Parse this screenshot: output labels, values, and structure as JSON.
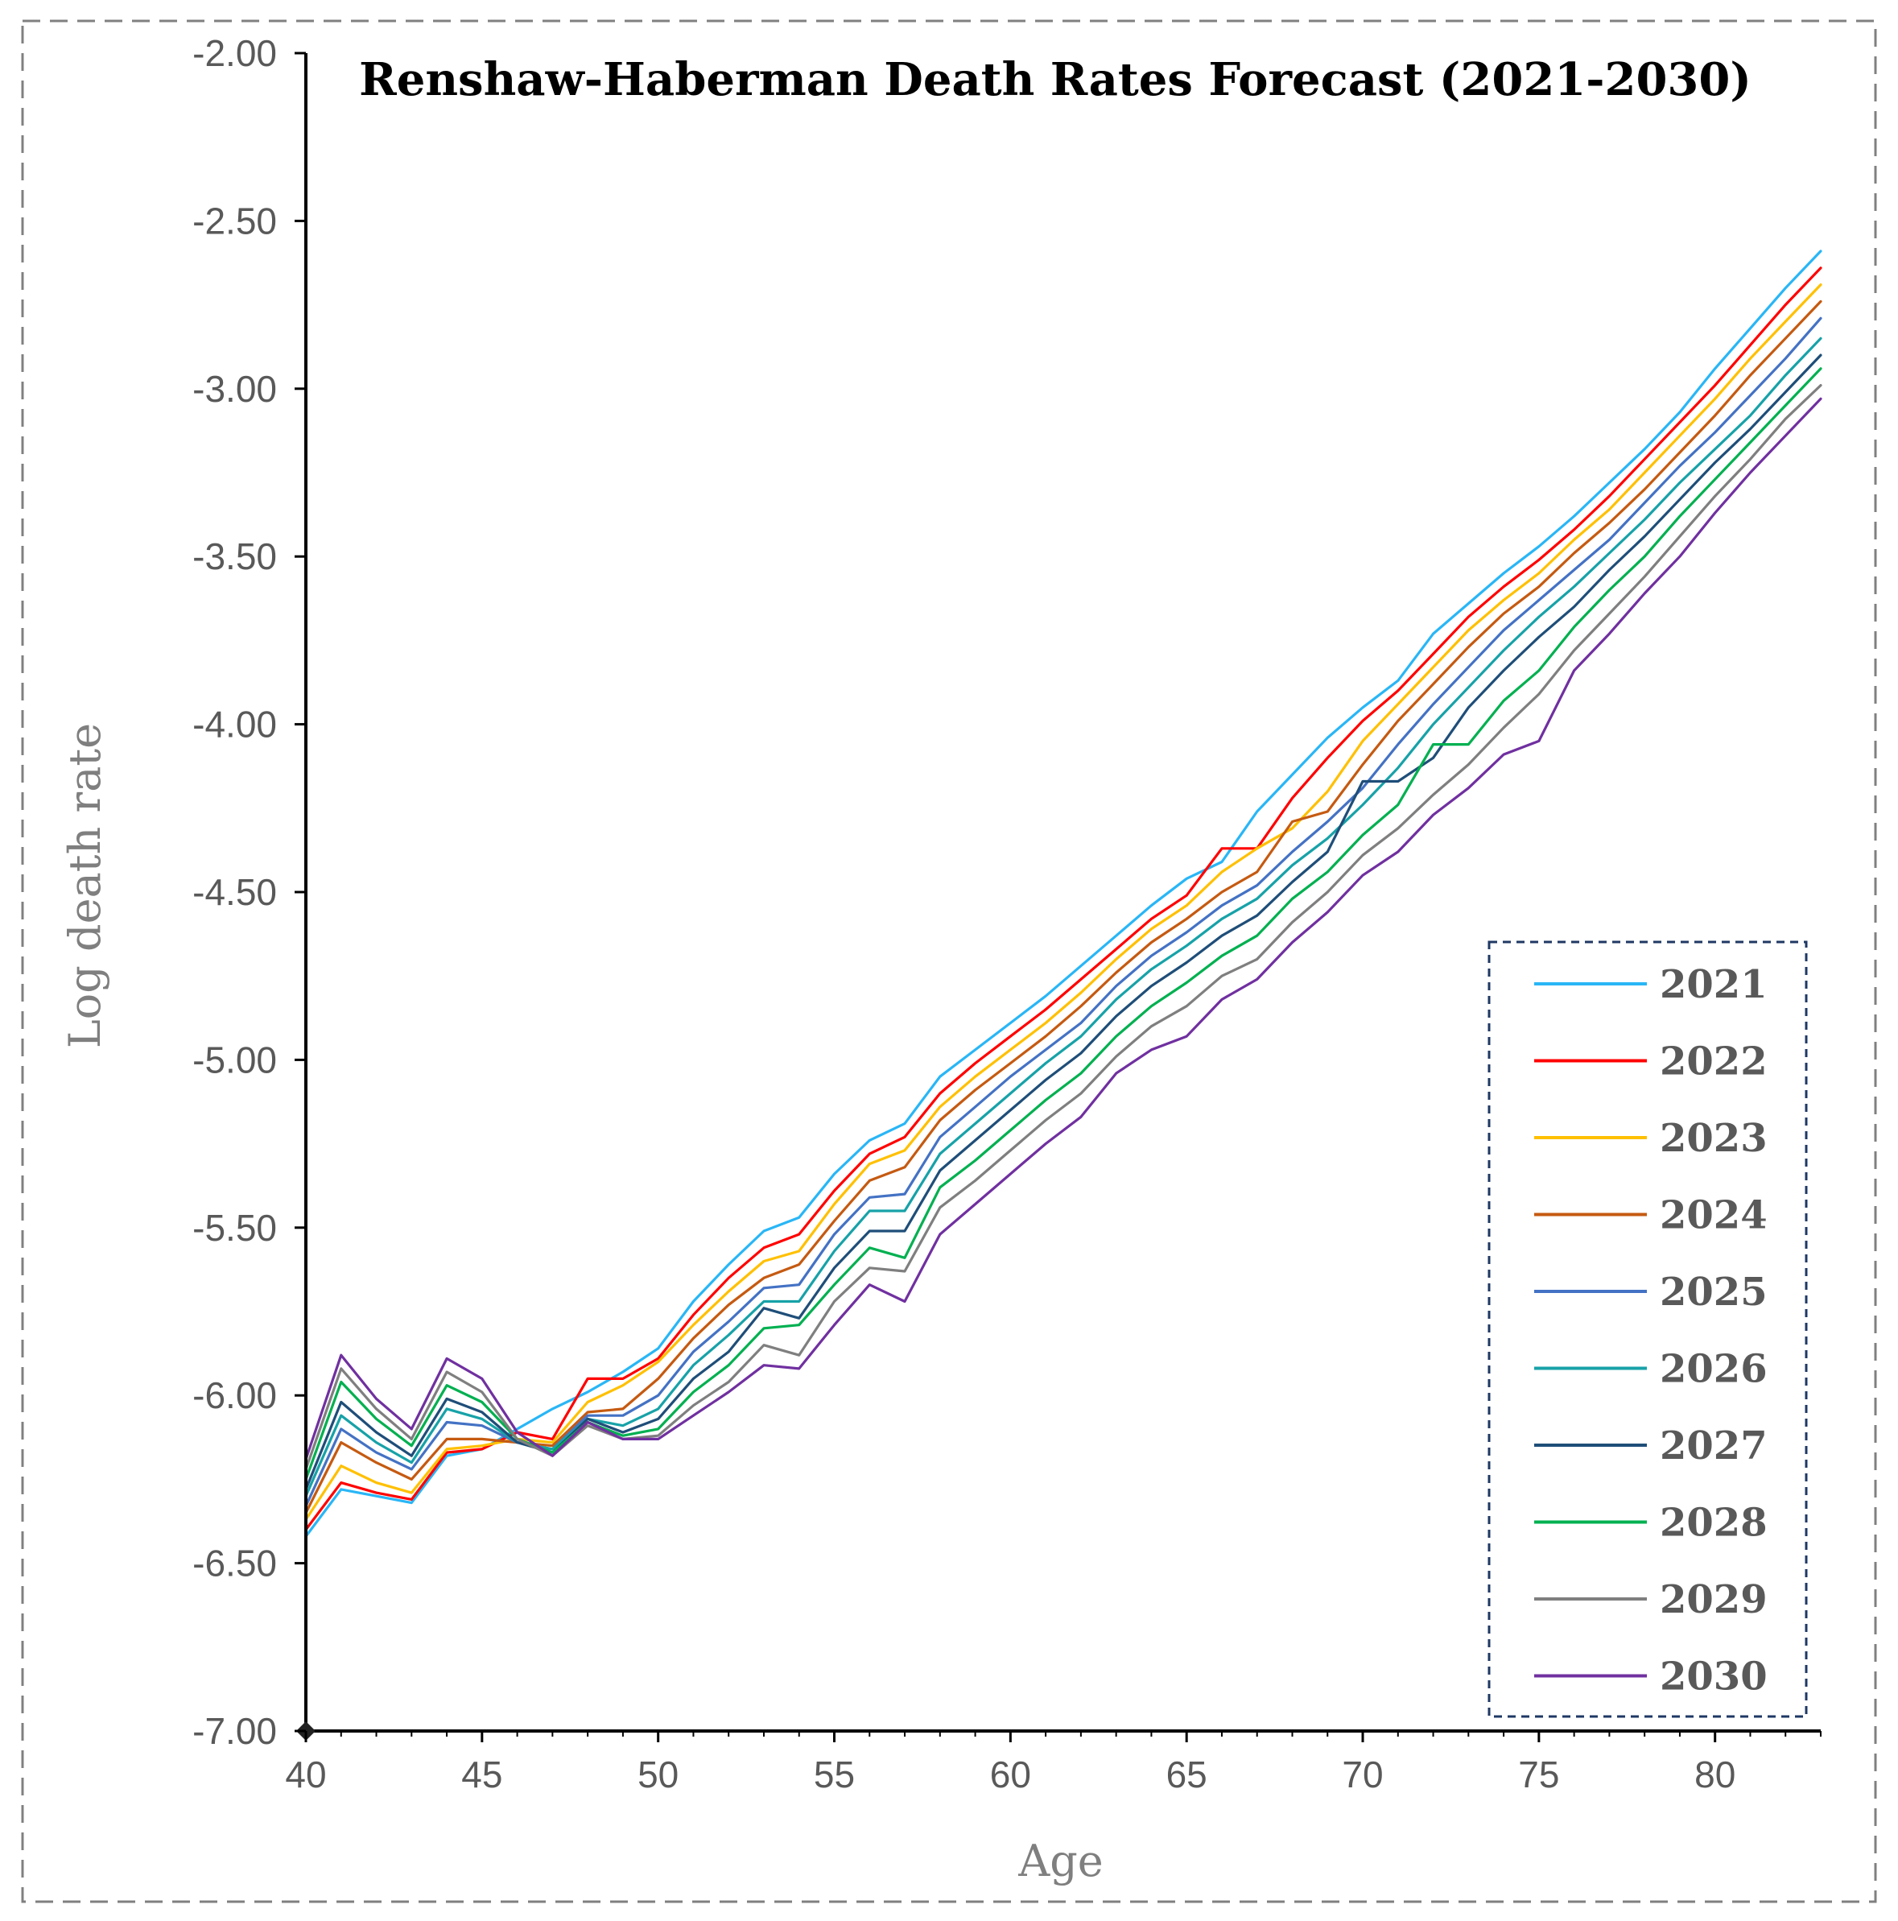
{
  "chart_data": {
    "type": "line",
    "title": "Renshaw-Haberman Death Rates Forecast (2021-2030)",
    "xlabel": "Age",
    "ylabel": "Log death rate",
    "xlim": [
      40,
      83
    ],
    "ylim": [
      -7.0,
      -2.0
    ],
    "x_ticks": [
      "40",
      "45",
      "50",
      "55",
      "60",
      "65",
      "70",
      "75",
      "80"
    ],
    "y_ticks": [
      "-2.00",
      "-2.50",
      "-3.00",
      "-3.50",
      "-4.00",
      "-4.50",
      "-5.00",
      "-5.50",
      "-6.00",
      "-6.50",
      "-7.00"
    ],
    "legend_position": "bottom-right",
    "x": [
      40,
      41,
      42,
      43,
      44,
      45,
      46,
      47,
      48,
      49,
      50,
      51,
      52,
      53,
      54,
      55,
      56,
      57,
      58,
      59,
      60,
      61,
      62,
      63,
      64,
      65,
      66,
      67,
      68,
      69,
      70,
      71,
      72,
      73,
      74,
      75,
      76,
      77,
      78,
      79,
      80,
      81,
      82,
      83
    ],
    "series": [
      {
        "name": "2021",
        "color": "#29b6f6",
        "values": [
          -6.42,
          -6.28,
          -6.3,
          -6.32,
          -6.18,
          -6.16,
          -6.1,
          -6.04,
          -5.99,
          -5.93,
          -5.86,
          -5.72,
          -5.61,
          -5.51,
          -5.47,
          -5.34,
          -5.24,
          -5.19,
          -5.05,
          -4.97,
          -4.89,
          -4.81,
          -4.72,
          -4.63,
          -4.54,
          -4.46,
          -4.41,
          -4.26,
          -4.15,
          -4.04,
          -3.95,
          -3.87,
          -3.73,
          -3.64,
          -3.55,
          -3.47,
          -3.38,
          -3.28,
          -3.18,
          -3.07,
          -2.94,
          -2.82,
          -2.7,
          -2.59
        ]
      },
      {
        "name": "2022",
        "color": "#ff0000",
        "values": [
          -6.4,
          -6.26,
          -6.29,
          -6.31,
          -6.17,
          -6.16,
          -6.11,
          -6.13,
          -5.95,
          -5.95,
          -5.89,
          -5.76,
          -5.65,
          -5.56,
          -5.52,
          -5.39,
          -5.28,
          -5.23,
          -5.1,
          -5.01,
          -4.93,
          -4.85,
          -4.76,
          -4.67,
          -4.58,
          -4.51,
          -4.37,
          -4.37,
          -4.22,
          -4.1,
          -3.99,
          -3.9,
          -3.79,
          -3.68,
          -3.59,
          -3.51,
          -3.42,
          -3.32,
          -3.21,
          -3.1,
          -2.99,
          -2.87,
          -2.75,
          -2.64
        ]
      },
      {
        "name": "2023",
        "color": "#ffc000",
        "values": [
          -6.37,
          -6.21,
          -6.26,
          -6.29,
          -6.16,
          -6.15,
          -6.13,
          -6.14,
          -6.02,
          -5.97,
          -5.9,
          -5.79,
          -5.69,
          -5.6,
          -5.57,
          -5.43,
          -5.31,
          -5.27,
          -5.14,
          -5.05,
          -4.97,
          -4.89,
          -4.8,
          -4.7,
          -4.61,
          -4.54,
          -4.44,
          -4.37,
          -4.31,
          -4.2,
          -4.05,
          -3.94,
          -3.83,
          -3.72,
          -3.63,
          -3.55,
          -3.45,
          -3.36,
          -3.25,
          -3.14,
          -3.03,
          -2.91,
          -2.8,
          -2.69
        ]
      },
      {
        "name": "2024",
        "color": "#c55a11",
        "values": [
          -6.35,
          -6.14,
          -6.2,
          -6.25,
          -6.13,
          -6.13,
          -6.14,
          -6.15,
          -6.05,
          -6.04,
          -5.95,
          -5.83,
          -5.73,
          -5.65,
          -5.61,
          -5.48,
          -5.36,
          -5.32,
          -5.18,
          -5.09,
          -5.01,
          -4.93,
          -4.84,
          -4.74,
          -4.65,
          -4.58,
          -4.5,
          -4.44,
          -4.29,
          -4.26,
          -4.12,
          -3.99,
          -3.88,
          -3.77,
          -3.67,
          -3.59,
          -3.49,
          -3.4,
          -3.3,
          -3.19,
          -3.08,
          -2.96,
          -2.85,
          -2.74
        ]
      },
      {
        "name": "2025",
        "color": "#4472c4",
        "values": [
          -6.33,
          -6.1,
          -6.17,
          -6.22,
          -6.08,
          -6.09,
          -6.14,
          -6.16,
          -6.06,
          -6.06,
          -6.0,
          -5.87,
          -5.78,
          -5.68,
          -5.67,
          -5.52,
          -5.41,
          -5.4,
          -5.23,
          -5.14,
          -5.05,
          -4.97,
          -4.89,
          -4.78,
          -4.69,
          -4.62,
          -4.54,
          -4.48,
          -4.38,
          -4.29,
          -4.19,
          -4.06,
          -3.94,
          -3.83,
          -3.72,
          -3.63,
          -3.54,
          -3.45,
          -3.34,
          -3.23,
          -3.13,
          -3.02,
          -2.91,
          -2.79
        ]
      },
      {
        "name": "2026",
        "color": "#17a2a8",
        "values": [
          -6.3,
          -6.06,
          -6.14,
          -6.2,
          -6.04,
          -6.07,
          -6.14,
          -6.16,
          -6.07,
          -6.09,
          -6.04,
          -5.91,
          -5.82,
          -5.72,
          -5.72,
          -5.57,
          -5.45,
          -5.45,
          -5.28,
          -5.19,
          -5.1,
          -5.01,
          -4.93,
          -4.82,
          -4.73,
          -4.66,
          -4.58,
          -4.52,
          -4.42,
          -4.34,
          -4.24,
          -4.13,
          -4.0,
          -3.89,
          -3.78,
          -3.68,
          -3.59,
          -3.49,
          -3.39,
          -3.28,
          -3.18,
          -3.08,
          -2.96,
          -2.85
        ]
      },
      {
        "name": "2027",
        "color": "#1f4e79",
        "values": [
          -6.28,
          -6.02,
          -6.11,
          -6.18,
          -6.01,
          -6.05,
          -6.14,
          -6.17,
          -6.07,
          -6.11,
          -6.07,
          -5.95,
          -5.87,
          -5.74,
          -5.77,
          -5.62,
          -5.51,
          -5.51,
          -5.33,
          -5.24,
          -5.15,
          -5.06,
          -4.98,
          -4.87,
          -4.78,
          -4.71,
          -4.63,
          -4.57,
          -4.47,
          -4.38,
          -4.17,
          -4.17,
          -4.1,
          -3.95,
          -3.84,
          -3.74,
          -3.65,
          -3.54,
          -3.44,
          -3.33,
          -3.22,
          -3.12,
          -3.01,
          -2.9
        ]
      },
      {
        "name": "2028",
        "color": "#00b050",
        "values": [
          -6.25,
          -5.96,
          -6.07,
          -6.15,
          -5.97,
          -6.02,
          -6.13,
          -6.17,
          -6.08,
          -6.12,
          -6.1,
          -5.99,
          -5.91,
          -5.8,
          -5.79,
          -5.67,
          -5.56,
          -5.59,
          -5.38,
          -5.3,
          -5.21,
          -5.12,
          -5.04,
          -4.93,
          -4.84,
          -4.77,
          -4.69,
          -4.63,
          -4.52,
          -4.44,
          -4.33,
          -4.24,
          -4.06,
          -4.06,
          -3.93,
          -3.84,
          -3.71,
          -3.6,
          -3.5,
          -3.38,
          -3.27,
          -3.16,
          -3.05,
          -2.94
        ]
      },
      {
        "name": "2029",
        "color": "#7f7f7f",
        "values": [
          -6.22,
          -5.92,
          -6.04,
          -6.13,
          -5.93,
          -5.99,
          -6.13,
          -6.18,
          -6.09,
          -6.13,
          -6.12,
          -6.03,
          -5.96,
          -5.85,
          -5.88,
          -5.72,
          -5.62,
          -5.63,
          -5.44,
          -5.36,
          -5.27,
          -5.18,
          -5.1,
          -4.99,
          -4.9,
          -4.84,
          -4.75,
          -4.7,
          -4.59,
          -4.5,
          -4.39,
          -4.31,
          -4.21,
          -4.12,
          -4.01,
          -3.91,
          -3.78,
          -3.67,
          -3.56,
          -3.44,
          -3.32,
          -3.21,
          -3.09,
          -2.99
        ]
      },
      {
        "name": "2030",
        "color": "#7030a0",
        "values": [
          -6.19,
          -5.88,
          -6.01,
          -6.1,
          -5.89,
          -5.95,
          -6.11,
          -6.18,
          -6.08,
          -6.13,
          -6.13,
          -6.06,
          -5.99,
          -5.91,
          -5.92,
          -5.79,
          -5.67,
          -5.72,
          -5.52,
          -5.43,
          -5.34,
          -5.25,
          -5.17,
          -5.04,
          -4.97,
          -4.93,
          -4.82,
          -4.76,
          -4.65,
          -4.56,
          -4.45,
          -4.38,
          -4.27,
          -4.19,
          -4.09,
          -4.05,
          -3.84,
          -3.73,
          -3.61,
          -3.5,
          -3.37,
          -3.25,
          -3.14,
          -3.03
        ]
      }
    ]
  }
}
